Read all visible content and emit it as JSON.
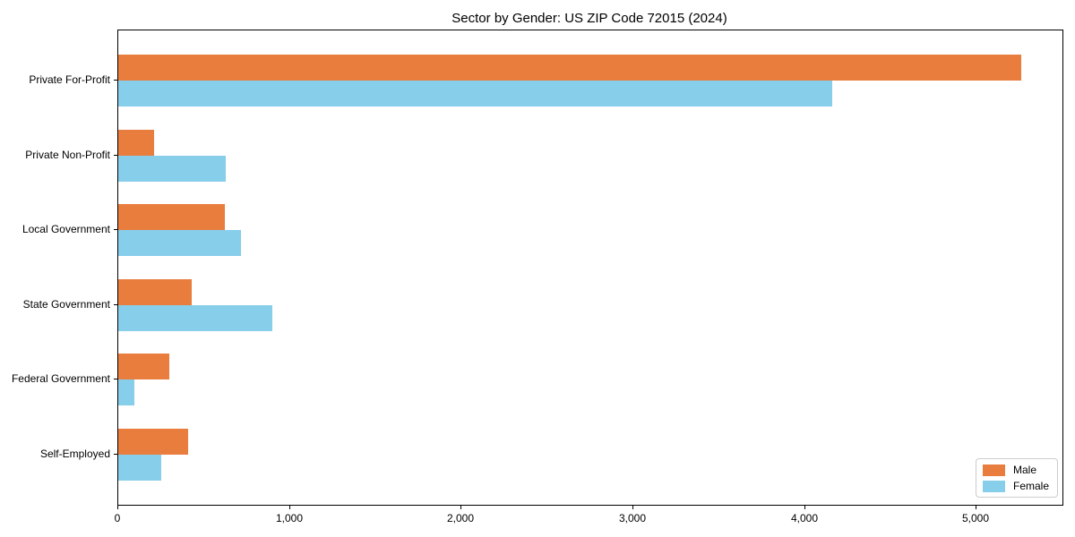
{
  "title": "Sector by Gender: US ZIP Code 72015 (2024)",
  "colors": {
    "male": "#e87d3e",
    "female": "#87ceeb",
    "spine": "#000000",
    "legend_border": "#cccccc",
    "background": "#ffffff",
    "text": "#000000"
  },
  "chart_data": {
    "type": "bar",
    "orientation": "horizontal",
    "title": "Sector by Gender: US ZIP Code 72015 (2024)",
    "categories": [
      "Private For-Profit",
      "Private Non-Profit",
      "Local Government",
      "State Government",
      "Federal Government",
      "Self-Employed"
    ],
    "series": [
      {
        "name": "Male",
        "color": "#e87d3e",
        "values": [
          5260,
          210,
          620,
          430,
          300,
          405
        ]
      },
      {
        "name": "Female",
        "color": "#87ceeb",
        "values": [
          4160,
          625,
          715,
          895,
          95,
          250
        ]
      }
    ],
    "xlabel": "",
    "ylabel": "",
    "xlim": [
      0,
      5500
    ],
    "x_ticks": [
      0,
      1000,
      2000,
      3000,
      4000,
      5000
    ],
    "x_tick_labels": [
      "0",
      "1,000",
      "2,000",
      "3,000",
      "4,000",
      "5,000"
    ],
    "grid": false,
    "legend_position": "lower right",
    "legend_entries": [
      "Male",
      "Female"
    ]
  }
}
